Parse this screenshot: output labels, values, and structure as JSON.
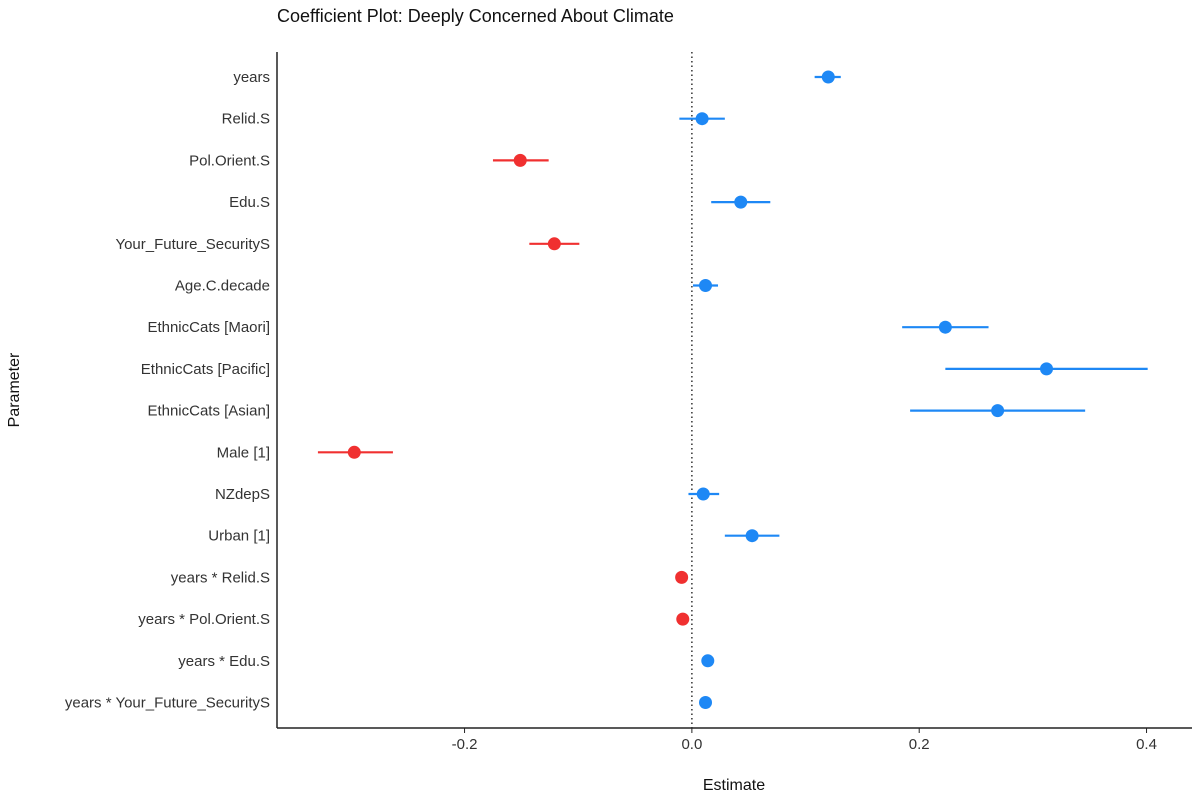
{
  "chart_data": {
    "type": "scatter",
    "subtype": "coefficient-plot",
    "title": "Coefficient Plot: Deeply Concerned About Climate",
    "xlabel": "Estimate",
    "ylabel": "Parameter",
    "xlim": [
      -0.365,
      0.44
    ],
    "xticks": [
      -0.2,
      0.0,
      0.2,
      0.4
    ],
    "xtick_labels": [
      "-0.2",
      "0.0",
      "0.2",
      "0.4"
    ],
    "reference_line": {
      "x": 0,
      "style": "dotted"
    },
    "grid": false,
    "legend": "none",
    "colors": {
      "positive": "#1E88F5",
      "negative": "#F03030",
      "axis": "#222222",
      "text": "#333333"
    },
    "parameters": [
      {
        "name": "years",
        "estimate": 0.12,
        "low": 0.108,
        "high": 0.131
      },
      {
        "name": "Relid.S",
        "estimate": 0.009,
        "low": -0.011,
        "high": 0.029
      },
      {
        "name": "Pol.Orient.S",
        "estimate": -0.151,
        "low": -0.175,
        "high": -0.126
      },
      {
        "name": "Edu.S",
        "estimate": 0.043,
        "low": 0.017,
        "high": 0.069
      },
      {
        "name": "Your_Future_SecurityS",
        "estimate": -0.121,
        "low": -0.143,
        "high": -0.099
      },
      {
        "name": "Age.C.decade",
        "estimate": 0.012,
        "low": 0.001,
        "high": 0.023
      },
      {
        "name": "EthnicCats [Maori]",
        "estimate": 0.223,
        "low": 0.185,
        "high": 0.261
      },
      {
        "name": "EthnicCats [Pacific]",
        "estimate": 0.312,
        "low": 0.223,
        "high": 0.401
      },
      {
        "name": "EthnicCats [Asian]",
        "estimate": 0.269,
        "low": 0.192,
        "high": 0.346
      },
      {
        "name": "Male [1]",
        "estimate": -0.297,
        "low": -0.329,
        "high": -0.263
      },
      {
        "name": "NZdepS",
        "estimate": 0.01,
        "low": -0.003,
        "high": 0.024
      },
      {
        "name": "Urban [1]",
        "estimate": 0.053,
        "low": 0.029,
        "high": 0.077
      },
      {
        "name": "years * Relid.S",
        "estimate": -0.009,
        "low": -0.012,
        "high": -0.006
      },
      {
        "name": "years * Pol.Orient.S",
        "estimate": -0.008,
        "low": -0.011,
        "high": -0.005
      },
      {
        "name": "years * Edu.S",
        "estimate": 0.014,
        "low": 0.011,
        "high": 0.017
      },
      {
        "name": "years * Your_Future_SecurityS",
        "estimate": 0.012,
        "low": 0.009,
        "high": 0.015
      }
    ]
  }
}
